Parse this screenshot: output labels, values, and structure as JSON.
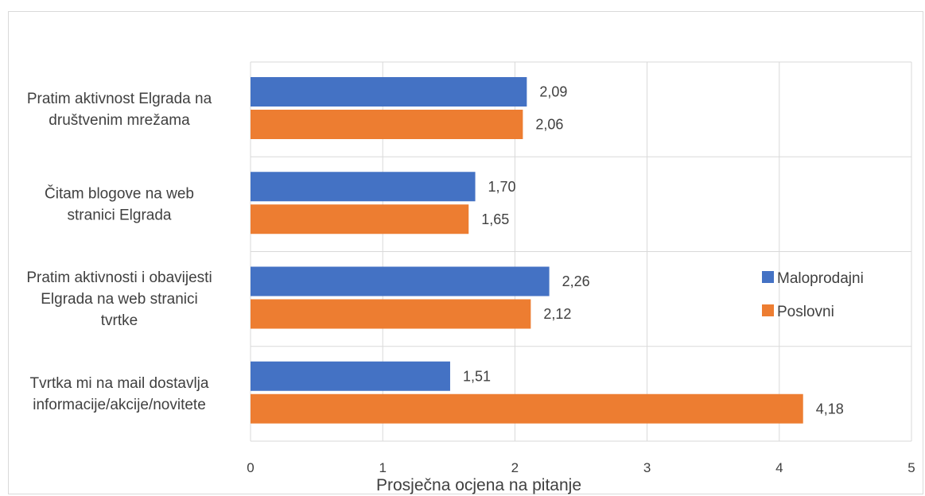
{
  "chart_data": {
    "type": "bar",
    "orientation": "horizontal",
    "title": "",
    "xlabel": "Prosječna ocjena na pitanje",
    "ylabel": "",
    "xlim": [
      0,
      5
    ],
    "x_ticks": [
      "0",
      "1",
      "2",
      "3",
      "4",
      "5"
    ],
    "grid": true,
    "legend_position": "right",
    "categories": [
      "Pratim aktivnost Elgrada na društvenim mrežama",
      "Čitam blogove na web stranici Elgrada",
      "Pratim aktivnosti i obavijesti Elgrada na web stranici tvrtke",
      "Tvrtka mi na mail dostavlja informacije/akcije/novitete"
    ],
    "category_label_lines": [
      [
        "Pratim aktivnost Elgrada na",
        "društvenim mrežama"
      ],
      [
        "Čitam blogove na web",
        "stranici Elgrada"
      ],
      [
        "Pratim aktivnosti i obavijesti",
        "Elgrada na web stranici",
        "tvrtke"
      ],
      [
        "Tvrtka mi na mail dostavlja",
        "informacije/akcije/novitete"
      ]
    ],
    "series": [
      {
        "name": "Maloprodajni",
        "color": "#4472C4",
        "values": [
          2.09,
          1.7,
          2.26,
          1.51
        ],
        "labels": [
          "2,09",
          "1,70",
          "2,26",
          "1,51"
        ]
      },
      {
        "name": "Poslovni",
        "color": "#ED7D31",
        "values": [
          2.06,
          1.65,
          2.12,
          4.18
        ],
        "labels": [
          "2,06",
          "1,65",
          "2,12",
          "4,18"
        ]
      }
    ]
  }
}
